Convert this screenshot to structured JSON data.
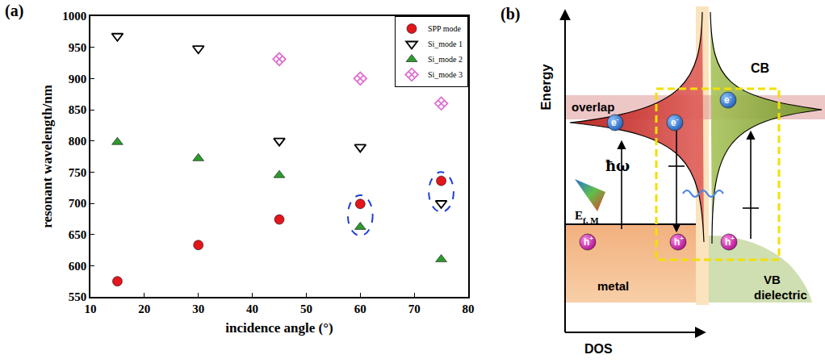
{
  "chart_data": {
    "type": "scatter",
    "panel_label": "(a)",
    "x_label": "incidence angle (°)",
    "y_label": "resonant wavelength/nm",
    "xlim": [
      10,
      80
    ],
    "xticks": [
      10,
      20,
      30,
      40,
      50,
      60,
      70,
      80
    ],
    "ylim": [
      550,
      1000
    ],
    "yticks": [
      550,
      600,
      650,
      700,
      750,
      800,
      850,
      900,
      950,
      1000
    ],
    "grid": false,
    "legend": "upper right",
    "series": [
      {
        "name": "SPP mode",
        "color": "#e3161c",
        "marker": "circle",
        "x": [
          15,
          30,
          45,
          60,
          75
        ],
        "values": [
          575,
          633,
          674,
          699,
          736
        ]
      },
      {
        "name": "Si_mode 1",
        "color": "#000000",
        "marker": "triangle-down-open",
        "x": [
          15,
          30,
          45,
          60,
          75
        ],
        "values": [
          968,
          948,
          800,
          790,
          700
        ]
      },
      {
        "name": "Si_mode 2",
        "color": "#2e9a2e",
        "marker": "triangle-up",
        "x": [
          15,
          30,
          45,
          60,
          75
        ],
        "values": [
          798,
          772,
          745,
          662,
          610
        ]
      },
      {
        "name": "Si_mode 3",
        "color": "#e070d0",
        "marker": "diamond-x-open",
        "x": [
          45,
          60,
          75
        ],
        "values": [
          931,
          900,
          860
        ]
      }
    ],
    "overlaps": [
      {
        "x": 60,
        "series": [
          "SPP mode",
          "Si_mode 2"
        ]
      },
      {
        "x": 75,
        "series": [
          "SPP mode",
          "Si_mode 1"
        ]
      }
    ]
  },
  "diagram": {
    "panel_label": "(b)",
    "y_axis": "Energy",
    "x_axis": "DOS",
    "metal": "metal",
    "fermi_level": {
      "text": "E",
      "subscript": "f, M"
    },
    "overlap": "overlap",
    "conduction_band": "CB",
    "valence_band": [
      "VB",
      "dielectric"
    ],
    "photon": "ħω",
    "electron": {
      "text": "e",
      "superscript": "-"
    },
    "hole": {
      "text": "h",
      "superscript": "+"
    }
  }
}
